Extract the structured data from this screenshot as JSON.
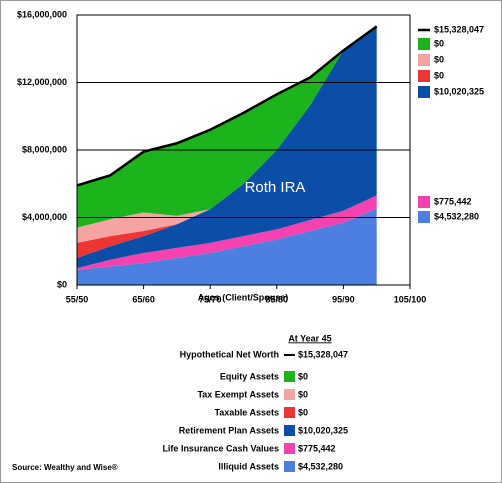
{
  "chart_data": {
    "type": "stacked_area",
    "x_label": "Ages (Client/Spouse)",
    "x": [
      55,
      60,
      65,
      70,
      75,
      80,
      85,
      90,
      95,
      100
    ],
    "xlim": [
      55,
      105
    ],
    "xticks": [
      {
        "value": 55,
        "label": "55/50"
      },
      {
        "value": 65,
        "label": "65/60"
      },
      {
        "value": 75,
        "label": "75/70"
      },
      {
        "value": 85,
        "label": "85/80"
      },
      {
        "value": 95,
        "label": "95/90"
      },
      {
        "value": 105,
        "label": "105/100"
      }
    ],
    "ylim": [
      0,
      16000000
    ],
    "yticks": [
      {
        "value": 0,
        "label": "$0"
      },
      {
        "value": 4000000,
        "label": "$4,000,000"
      },
      {
        "value": 8000000,
        "label": "$8,000,000"
      },
      {
        "value": 12000000,
        "label": "$12,000,000"
      },
      {
        "value": 16000000,
        "label": "$16,000,000"
      }
    ],
    "grid": true,
    "annotation": "Roth IRA",
    "legend_title": "At Year 45",
    "source": "Source: Wealthy and Wise®",
    "net_worth": {
      "name": "Hypothetical Net Worth",
      "color": "#000000",
      "values": [
        5900000,
        6500000,
        7900000,
        8400000,
        9200000,
        10200000,
        11300000,
        12300000,
        13900000,
        15328047
      ],
      "end_label": "$15,328,047"
    },
    "series": [
      {
        "name": "Equity Assets",
        "color": "#1db31d",
        "values": [
          2500000,
          2600000,
          3600000,
          4300000,
          4700000,
          4200000,
          3300000,
          1650000,
          0,
          0
        ],
        "end_label": "$0"
      },
      {
        "name": "Tax Exempt Assets",
        "color": "#f5a3a3",
        "values": [
          900000,
          1000000,
          1100000,
          500000,
          0,
          0,
          0,
          0,
          0,
          0
        ],
        "end_label": "$0"
      },
      {
        "name": "Taxable Assets",
        "color": "#ee3535",
        "values": [
          900000,
          600000,
          300000,
          0,
          0,
          0,
          0,
          0,
          0,
          0
        ],
        "end_label": "$0"
      },
      {
        "name": "Retirement Plan Assets",
        "color": "#0b4ea8",
        "values": [
          600000,
          800000,
          1000000,
          1400000,
          2000000,
          3100000,
          4700000,
          6800000,
          9500000,
          10020325
        ],
        "end_label": "$10,020,325"
      },
      {
        "name": "Life Insurance Cash Values",
        "color": "#f542b0",
        "values": [
          100000,
          400000,
          600000,
          600000,
          600000,
          600000,
          600000,
          650000,
          700000,
          775442
        ],
        "end_label": "$775,442"
      },
      {
        "name": "Illiquid Assets",
        "color": "#4c7fe0",
        "values": [
          900000,
          1100000,
          1300000,
          1600000,
          1900000,
          2300000,
          2700000,
          3200000,
          3700000,
          4532280
        ],
        "end_label": "$4,532,280"
      }
    ]
  }
}
